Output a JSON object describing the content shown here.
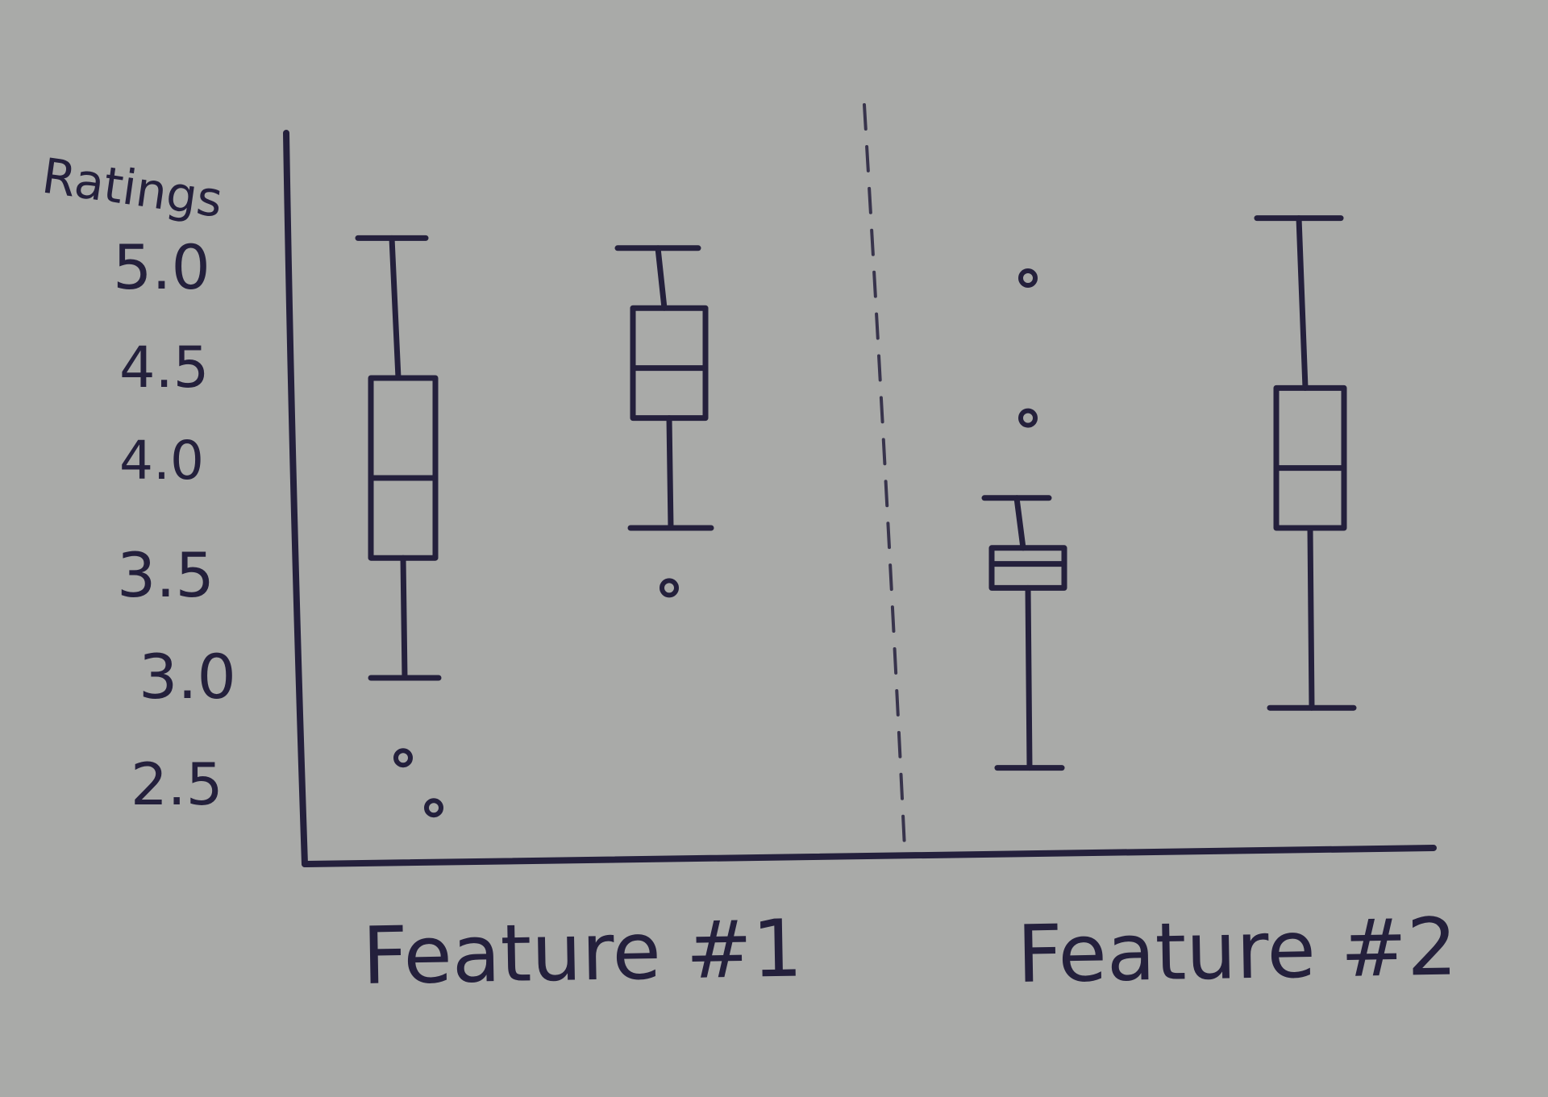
{
  "chart_data": {
    "type": "box",
    "ylabel": "Ratings",
    "yticks": [
      "5.0",
      "4.5",
      "4.0",
      "3.5",
      "3.0",
      "2.5"
    ],
    "ytick_values": [
      5.0,
      4.5,
      4.0,
      3.5,
      3.0,
      2.5
    ],
    "ylim": [
      2.2,
      5.5
    ],
    "grid": false,
    "groups": [
      "Feature #1",
      "Feature #2"
    ],
    "boxes": [
      {
        "group": 0,
        "min": 3.0,
        "q1": 3.6,
        "median": 4.0,
        "q3": 4.5,
        "max": 5.2,
        "outliers": [
          2.6,
          2.35
        ]
      },
      {
        "group": 0,
        "min": 3.75,
        "q1": 4.3,
        "median": 4.55,
        "q3": 4.85,
        "max": 5.15,
        "outliers": [
          3.45
        ]
      },
      {
        "group": 1,
        "min": 2.55,
        "q1": 3.45,
        "median": 3.57,
        "q3": 3.65,
        "max": 3.9,
        "outliers": [
          4.3,
          5.0
        ]
      },
      {
        "group": 1,
        "min": 2.85,
        "q1": 3.75,
        "median": 4.05,
        "q3": 4.45,
        "max": 5.3,
        "outliers": []
      }
    ]
  }
}
